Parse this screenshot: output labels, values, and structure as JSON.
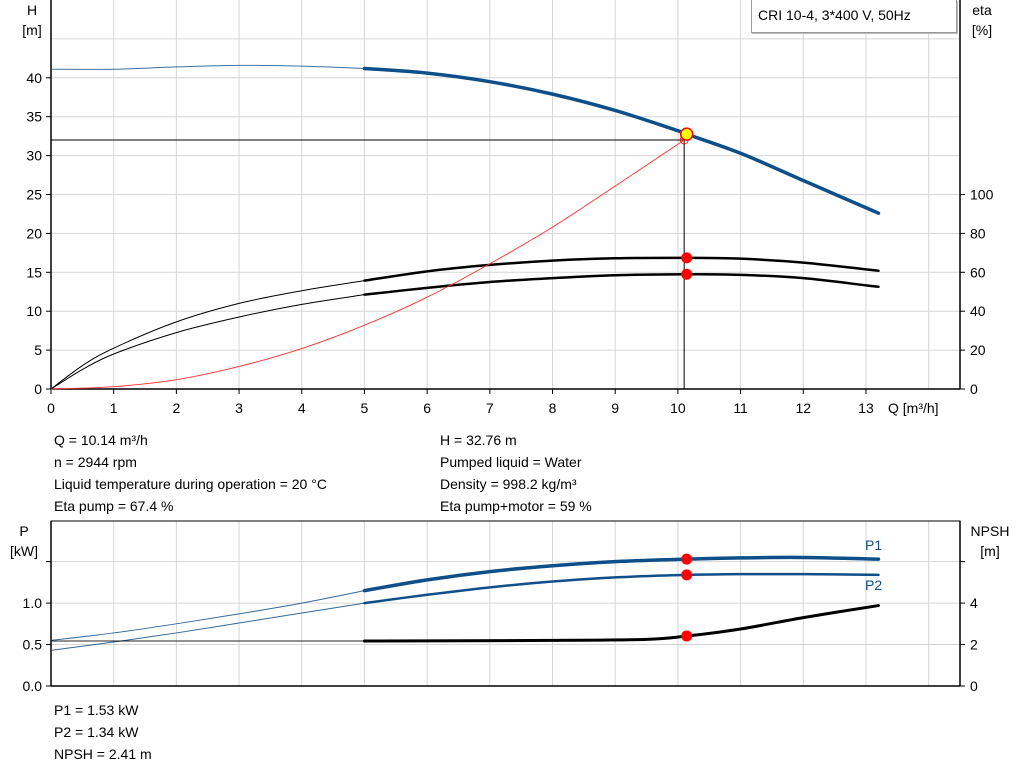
{
  "chart_data": [
    {
      "type": "line",
      "legend": "CRI 10-4, 3*400 V, 50Hz",
      "xlabel": "Q [m³/h]",
      "ylabel_left": [
        "H",
        "[m]"
      ],
      "ylabel_right": [
        "eta",
        "[%]"
      ],
      "xlim": [
        0,
        14.5
      ],
      "ylim_left": [
        0,
        50
      ],
      "ylim_right": [
        0,
        200
      ],
      "x_ticks": [
        0,
        1,
        2,
        3,
        4,
        5,
        6,
        7,
        8,
        9,
        10,
        11,
        12,
        13
      ],
      "y_ticks_left": [
        0,
        5,
        10,
        15,
        20,
        25,
        30,
        35,
        40
      ],
      "y_ticks_right": [
        0,
        20,
        40,
        60,
        80,
        100
      ],
      "grid": true,
      "series": [
        {
          "key": "H",
          "axis": "left",
          "color": "#0e4f8a",
          "thin": [
            [
              0,
              41.1
            ],
            [
              1,
              41.1
            ],
            [
              2,
              41.4
            ],
            [
              3,
              41.6
            ],
            [
              4,
              41.5
            ],
            [
              5,
              41.2
            ]
          ],
          "thick": [
            [
              5,
              41.2
            ],
            [
              6,
              40.6
            ],
            [
              7,
              39.5
            ],
            [
              8,
              37.9
            ],
            [
              9,
              35.8
            ],
            [
              10,
              33.2
            ],
            [
              10.14,
              32.76
            ],
            [
              11,
              30.3
            ],
            [
              12,
              26.8
            ],
            [
              13,
              23.3
            ],
            [
              13.2,
              22.6
            ]
          ]
        },
        {
          "key": "eta_pump",
          "axis": "right",
          "color": "#000000",
          "thin": [
            [
              0,
              0
            ],
            [
              0.5,
              12
            ],
            [
              1,
              21
            ],
            [
              2,
              34.5
            ],
            [
              3,
              44
            ],
            [
              4,
              50.5
            ],
            [
              5,
              55.7
            ]
          ],
          "thick": [
            [
              5,
              55.7
            ],
            [
              6,
              60.5
            ],
            [
              7,
              63.8
            ],
            [
              8,
              66
            ],
            [
              9,
              67.2
            ],
            [
              10.14,
              67.4
            ],
            [
              11,
              67
            ],
            [
              12,
              65
            ],
            [
              13,
              61.5
            ],
            [
              13.2,
              60.8
            ]
          ]
        },
        {
          "key": "eta_pump_motor",
          "axis": "right",
          "color": "#000000",
          "thin": [
            [
              0,
              0
            ],
            [
              0.5,
              10
            ],
            [
              1,
              18
            ],
            [
              2,
              29
            ],
            [
              3,
              37
            ],
            [
              4,
              43.5
            ],
            [
              5,
              48.5
            ]
          ],
          "thick": [
            [
              5,
              48.5
            ],
            [
              6,
              52
            ],
            [
              7,
              55
            ],
            [
              8,
              57
            ],
            [
              9,
              58.5
            ],
            [
              10.14,
              59
            ],
            [
              11,
              58.7
            ],
            [
              12,
              57
            ],
            [
              13,
              53.3
            ],
            [
              13.2,
              52.6
            ]
          ]
        },
        {
          "key": "system",
          "axis": "left",
          "color": "#ff3030",
          "thin": [
            [
              0,
              0
            ],
            [
              1,
              0.3
            ],
            [
              2,
              1.2
            ],
            [
              3,
              2.9
            ],
            [
              4,
              5.2
            ],
            [
              5,
              8.2
            ],
            [
              6,
              11.8
            ],
            [
              7,
              16.1
            ],
            [
              8,
              20.8
            ],
            [
              9,
              26.1
            ],
            [
              10.1,
              32
            ]
          ]
        }
      ],
      "duty_point": {
        "Q": 10.14,
        "H": 32.76,
        "eta_pump": 67.4,
        "eta_pump_motor": 59
      },
      "system_point": {
        "Q": 10.1,
        "H": 32
      }
    },
    {
      "type": "line",
      "ylabel_left": [
        "P",
        "[kW]"
      ],
      "ylabel_right": [
        "NPSH",
        "[m]"
      ],
      "xlim": [
        0,
        14.5
      ],
      "ylim_left": [
        0,
        1.99
      ],
      "ylim_right": [
        0,
        7.96
      ],
      "y_ticks_left": [
        "0.0",
        "0.5",
        "1.0",
        ""
      ],
      "y_ticks_left_values": [
        0,
        0.5,
        1.0,
        1.5
      ],
      "y_ticks_right": [
        "0",
        "2",
        "4",
        ""
      ],
      "y_ticks_right_values": [
        0,
        2,
        4,
        6
      ],
      "grid": true,
      "series": [
        {
          "key": "P1",
          "name": "P1",
          "axis": "left",
          "color": "#0e4f8a",
          "thin": [
            [
              0,
              0.55
            ],
            [
              1,
              0.64
            ],
            [
              2,
              0.75
            ],
            [
              3,
              0.87
            ],
            [
              4,
              1.0
            ],
            [
              5,
              1.15
            ]
          ],
          "thick": [
            [
              5,
              1.15
            ],
            [
              6,
              1.28
            ],
            [
              7,
              1.38
            ],
            [
              8,
              1.45
            ],
            [
              9,
              1.5
            ],
            [
              10.14,
              1.53
            ],
            [
              11,
              1.545
            ],
            [
              12,
              1.55
            ],
            [
              13.2,
              1.53
            ]
          ]
        },
        {
          "key": "P2",
          "name": "P2",
          "axis": "left",
          "color": "#0e4f8a",
          "thin": [
            [
              0,
              0.43
            ],
            [
              1,
              0.53
            ],
            [
              2,
              0.64
            ],
            [
              3,
              0.76
            ],
            [
              4,
              0.88
            ],
            [
              5,
              1.0
            ]
          ],
          "thick": [
            [
              5,
              1.0
            ],
            [
              6,
              1.1
            ],
            [
              7,
              1.19
            ],
            [
              8,
              1.26
            ],
            [
              9,
              1.31
            ],
            [
              10.14,
              1.34
            ],
            [
              11,
              1.35
            ],
            [
              12,
              1.35
            ],
            [
              13.2,
              1.34
            ]
          ]
        },
        {
          "key": "NPSH",
          "axis": "right",
          "color": "#000000",
          "thin": [
            [
              0,
              2.17
            ],
            [
              5,
              2.17
            ]
          ],
          "thick": [
            [
              5,
              2.17
            ],
            [
              8,
              2.2
            ],
            [
              9.5,
              2.25
            ],
            [
              10.14,
              2.41
            ],
            [
              11,
              2.75
            ],
            [
              12,
              3.3
            ],
            [
              13.2,
              3.88
            ]
          ]
        }
      ],
      "duty_point": {
        "Q": 10.14,
        "P1": 1.53,
        "P2": 1.34,
        "NPSH": 2.41
      }
    }
  ],
  "info_top": {
    "left": [
      "Q = 10.14 m³/h",
      "n = 2944 rpm",
      "Liquid temperature during operation = 20 °C",
      "Eta pump = 67.4 %"
    ],
    "right": [
      "H = 32.76 m",
      "Pumped liquid = Water",
      "Density = 998.2 kg/m³",
      "Eta pump+motor = 59 %"
    ]
  },
  "info_bottom": [
    "P1 = 1.53 kW",
    "P2 = 1.34 kW",
    "NPSH = 2.41 m"
  ],
  "colors": {
    "curve_blue": "#0e4f8a",
    "duty_fill": "#ffff00",
    "duty_stroke": "#ff0000",
    "marker": "#ff0000",
    "system": "#ff3030",
    "grid": "#d6d6d6"
  }
}
